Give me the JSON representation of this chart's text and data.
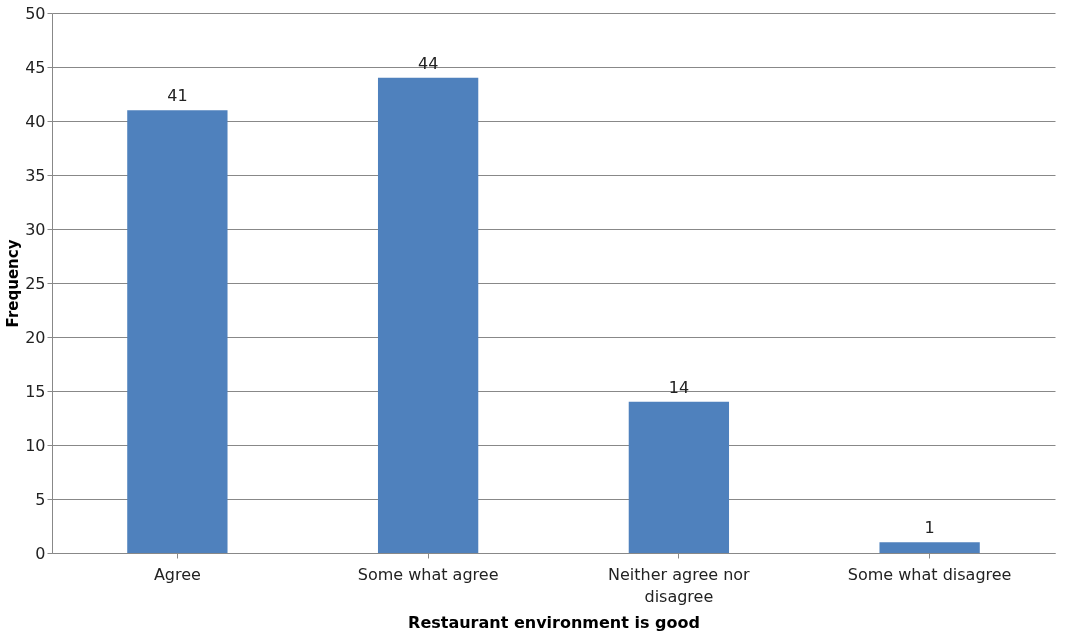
{
  "chart_data": {
    "type": "bar",
    "xlabel": "Restaurant environment is good",
    "ylabel": "Frequency",
    "categories": [
      "Agree",
      "Some what agree",
      "Neither agree nor disagree",
      "Some what disagree"
    ],
    "values": [
      41,
      44,
      14,
      1
    ],
    "color": "#4f81bd",
    "ylim": [
      0,
      50
    ],
    "yticks": [
      0,
      5,
      10,
      15,
      20,
      25,
      30,
      35,
      40,
      45,
      50
    ],
    "grid": "y",
    "data_labels": true
  }
}
